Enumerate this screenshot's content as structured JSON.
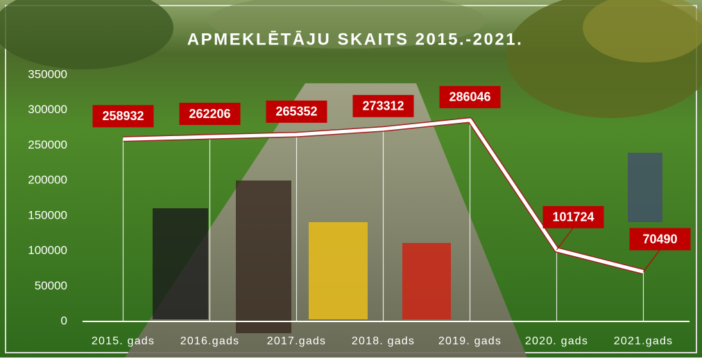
{
  "chart_data": {
    "type": "line",
    "title": "APMEKLĒTĀJU SKAITS 2015.-2021.",
    "categories": [
      "2015. gads",
      "2016.gads",
      "2017.gads",
      "2018. gads",
      "2019. gads",
      "2020. gads",
      "2021.gads"
    ],
    "values": [
      258932,
      262206,
      265352,
      273312,
      286046,
      101724,
      70490
    ],
    "color": "#ffffff",
    "label_color": "#c00000",
    "ylim": [
      0,
      350000
    ],
    "yticks": [
      0,
      50000,
      100000,
      150000,
      200000,
      250000,
      300000,
      350000
    ]
  }
}
